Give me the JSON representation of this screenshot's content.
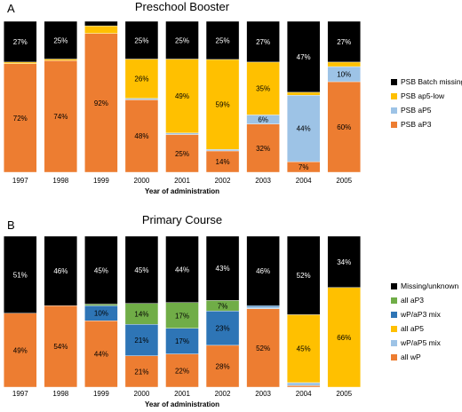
{
  "colors": {
    "black": "#000000",
    "yellow": "#FFC000",
    "lightblue": "#9DC3E6",
    "orange": "#ED7D31",
    "green": "#70AD47",
    "blue": "#2E75B6"
  },
  "chart_data": [
    {
      "type": "bar",
      "stacked": true,
      "normalized": true,
      "panel_letter": "A",
      "title": "Preschool Booster",
      "xlabel": "Year of administration",
      "categories": [
        "1997",
        "1998",
        "1999",
        "2000",
        "2001",
        "2002",
        "2003",
        "2004",
        "2005"
      ],
      "legend_position": "right",
      "series": [
        {
          "name": "PSB aP3",
          "color": "#ED7D31",
          "values": [
            72,
            74,
            92,
            48,
            25,
            14,
            32,
            7,
            60
          ],
          "labels": [
            "72%",
            "74%",
            "92%",
            "48%",
            "25%",
            "14%",
            "32%",
            "7%",
            "60%"
          ]
        },
        {
          "name": "PSB aP5",
          "color": "#9DC3E6",
          "values": [
            0,
            0,
            0,
            1,
            1,
            1,
            6,
            44,
            10
          ],
          "labels": [
            "",
            "",
            "",
            "",
            "",
            "",
            "6%",
            "44%",
            "10%"
          ]
        },
        {
          "name": "PSB ap5-low",
          "color": "#FFC000",
          "values": [
            1,
            1,
            5,
            26,
            49,
            59,
            35,
            2,
            3
          ],
          "labels": [
            "",
            "",
            "",
            "26%",
            "49%",
            "59%",
            "35%",
            "",
            ""
          ]
        },
        {
          "name": "PSB Batch missing",
          "color": "#000000",
          "values": [
            27,
            25,
            3,
            25,
            25,
            25,
            27,
            47,
            27
          ],
          "labels": [
            "27%",
            "25%",
            "",
            "25%",
            "25%",
            "25%",
            "27%",
            "47%",
            "27%"
          ]
        }
      ]
    },
    {
      "type": "bar",
      "stacked": true,
      "normalized": true,
      "panel_letter": "B",
      "title": "Primary Course",
      "xlabel": "Year of administration",
      "categories": [
        "1997",
        "1998",
        "1999",
        "2000",
        "2001",
        "2002",
        "2003",
        "2004",
        "2005"
      ],
      "legend_position": "right",
      "series": [
        {
          "name": "all wP",
          "color": "#ED7D31",
          "values": [
            49,
            54,
            44,
            21,
            22,
            28,
            52,
            1,
            0
          ],
          "labels": [
            "49%",
            "54%",
            "44%",
            "21%",
            "22%",
            "28%",
            "52%",
            "",
            ""
          ]
        },
        {
          "name": "wP/aP5 mix",
          "color": "#9DC3E6",
          "values": [
            0,
            0,
            0,
            0,
            0,
            0,
            1,
            2,
            0
          ],
          "labels": [
            "",
            "",
            "",
            "",
            "",
            "",
            "",
            "",
            ""
          ]
        },
        {
          "name": "all aP5",
          "color": "#FFC000",
          "values": [
            0,
            0,
            0,
            0,
            0,
            0,
            0,
            45,
            66
          ],
          "labels": [
            "",
            "",
            "",
            "",
            "",
            "",
            "",
            "45%",
            "66%"
          ]
        },
        {
          "name": "wP/aP3 mix",
          "color": "#2E75B6",
          "values": [
            0,
            0,
            10,
            21,
            17,
            23,
            1,
            0,
            0
          ],
          "labels": [
            "",
            "",
            "10%",
            "21%",
            "17%",
            "23%",
            "",
            "",
            ""
          ]
        },
        {
          "name": "all aP3",
          "color": "#70AD47",
          "values": [
            0,
            0,
            1,
            14,
            17,
            7,
            0,
            0,
            0
          ],
          "labels": [
            "",
            "",
            "",
            "14%",
            "17%",
            "7%",
            "",
            "",
            ""
          ]
        },
        {
          "name": "Missing/unknown",
          "color": "#000000",
          "values": [
            51,
            46,
            45,
            45,
            44,
            43,
            46,
            52,
            34
          ],
          "labels": [
            "51%",
            "46%",
            "45%",
            "45%",
            "44%",
            "43%",
            "46%",
            "52%",
            "34%"
          ]
        }
      ]
    }
  ]
}
